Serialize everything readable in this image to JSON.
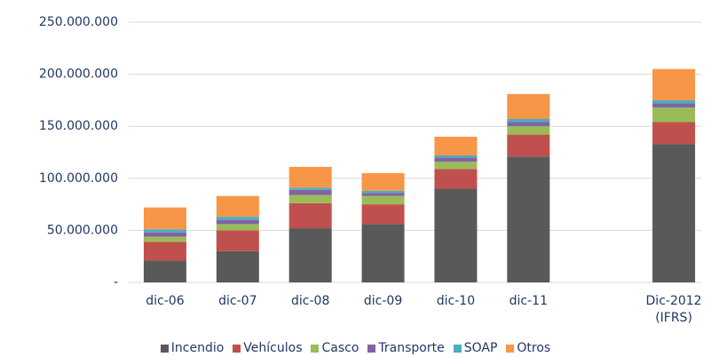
{
  "chart_data": {
    "type": "stacked_bar",
    "categories": [
      "dic-06",
      "dic-07",
      "dic-08",
      "dic-09",
      "dic-10",
      "dic-11",
      null,
      "Dic-2012\n(IFRS)"
    ],
    "series": [
      {
        "name": "Incendio",
        "color": "#595959",
        "values": [
          21000000,
          30000000,
          52000000,
          56000000,
          90000000,
          121000000,
          null,
          133000000
        ]
      },
      {
        "name": "Vehículos",
        "color": "#c0504d",
        "values": [
          18000000,
          20000000,
          24000000,
          19000000,
          19000000,
          21000000,
          null,
          21000000
        ]
      },
      {
        "name": "Casco",
        "color": "#9bbb59",
        "values": [
          5000000,
          6000000,
          8000000,
          8000000,
          7000000,
          8000000,
          null,
          14000000
        ]
      },
      {
        "name": "Transporte",
        "color": "#8064a2",
        "values": [
          4000000,
          4000000,
          5000000,
          3000000,
          4000000,
          4000000,
          null,
          4000000
        ]
      },
      {
        "name": "SOAP",
        "color": "#4bacc6",
        "values": [
          3000000,
          3000000,
          2000000,
          2000000,
          2000000,
          3000000,
          null,
          3000000
        ]
      },
      {
        "name": "Otros",
        "color": "#f79646",
        "values": [
          21000000,
          20000000,
          20000000,
          17000000,
          18000000,
          24000000,
          null,
          30000000
        ]
      }
    ],
    "ylim": [
      0,
      250000000
    ],
    "yticks": [
      {
        "value": 0,
        "label": "-"
      },
      {
        "value": 50000000,
        "label": "50.000.000"
      },
      {
        "value": 100000000,
        "label": "100.000.000"
      },
      {
        "value": 150000000,
        "label": "150.000.000"
      },
      {
        "value": 200000000,
        "label": "200.000.000"
      },
      {
        "value": 250000000,
        "label": "250.000.000"
      }
    ],
    "grid": true,
    "legend": "bottom"
  }
}
